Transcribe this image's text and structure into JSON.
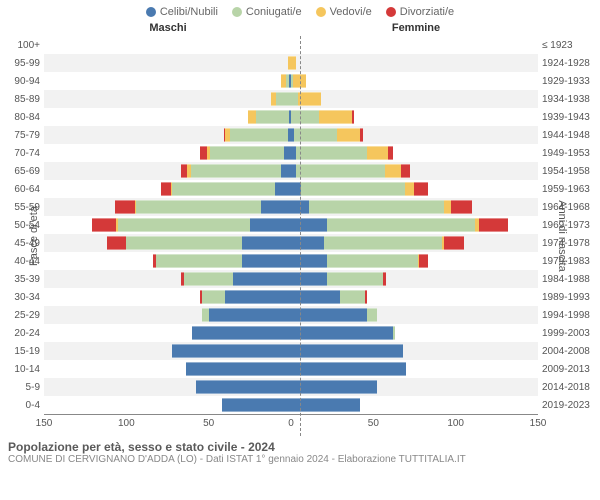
{
  "legend": [
    {
      "label": "Celibi/Nubili",
      "color": "#4a7ab0"
    },
    {
      "label": "Coniugati/e",
      "color": "#b8d4a8"
    },
    {
      "label": "Vedovi/e",
      "color": "#f5c65d"
    },
    {
      "label": "Divorziati/e",
      "color": "#d43939"
    }
  ],
  "headers": {
    "male": "Maschi",
    "female": "Femmine"
  },
  "y_left_title": "Fasce di età",
  "y_right_title": "Anni di nascita",
  "x_max": 150,
  "x_ticks": [
    150,
    100,
    50,
    0,
    50,
    100,
    150
  ],
  "colors": {
    "celibi": "#4a7ab0",
    "coniugati": "#b8d4a8",
    "vedovi": "#f5c65d",
    "divorziati": "#d43939",
    "alt_row": "#f2f2f2",
    "grid": "#888"
  },
  "rows": [
    {
      "age": "100+",
      "birth": "≤ 1923",
      "m": [
        0,
        0,
        0,
        0
      ],
      "f": [
        0,
        0,
        0,
        0
      ]
    },
    {
      "age": "95-99",
      "birth": "1924-1928",
      "m": [
        0,
        0,
        2,
        0
      ],
      "f": [
        0,
        0,
        3,
        0
      ]
    },
    {
      "age": "90-94",
      "birth": "1929-1933",
      "m": [
        1,
        2,
        3,
        0
      ],
      "f": [
        0,
        1,
        8,
        0
      ]
    },
    {
      "age": "85-89",
      "birth": "1934-1938",
      "m": [
        0,
        9,
        3,
        0
      ],
      "f": [
        0,
        4,
        14,
        0
      ]
    },
    {
      "age": "80-84",
      "birth": "1939-1943",
      "m": [
        1,
        20,
        5,
        0
      ],
      "f": [
        0,
        17,
        20,
        1
      ]
    },
    {
      "age": "75-79",
      "birth": "1944-1948",
      "m": [
        2,
        35,
        3,
        1
      ],
      "f": [
        2,
        26,
        14,
        2
      ]
    },
    {
      "age": "70-74",
      "birth": "1949-1953",
      "m": [
        4,
        45,
        2,
        4
      ],
      "f": [
        3,
        43,
        13,
        3
      ]
    },
    {
      "age": "65-69",
      "birth": "1954-1958",
      "m": [
        6,
        55,
        2,
        4
      ],
      "f": [
        3,
        54,
        10,
        5
      ]
    },
    {
      "age": "60-64",
      "birth": "1959-1963",
      "m": [
        10,
        62,
        1,
        6
      ],
      "f": [
        6,
        63,
        6,
        8
      ]
    },
    {
      "age": "55-59",
      "birth": "1964-1968",
      "m": [
        18,
        76,
        1,
        12
      ],
      "f": [
        11,
        82,
        4,
        13
      ]
    },
    {
      "age": "50-54",
      "birth": "1969-1973",
      "m": [
        25,
        80,
        1,
        15
      ],
      "f": [
        22,
        90,
        2,
        18
      ]
    },
    {
      "age": "45-49",
      "birth": "1974-1978",
      "m": [
        30,
        70,
        0,
        12
      ],
      "f": [
        20,
        72,
        1,
        12
      ]
    },
    {
      "age": "40-44",
      "birth": "1979-1983",
      "m": [
        30,
        52,
        0,
        2
      ],
      "f": [
        22,
        55,
        1,
        5
      ]
    },
    {
      "age": "35-39",
      "birth": "1984-1988",
      "m": [
        35,
        30,
        0,
        2
      ],
      "f": [
        22,
        34,
        0,
        2
      ]
    },
    {
      "age": "30-34",
      "birth": "1989-1993",
      "m": [
        40,
        14,
        0,
        1
      ],
      "f": [
        30,
        15,
        0,
        1
      ]
    },
    {
      "age": "25-29",
      "birth": "1994-1998",
      "m": [
        50,
        4,
        0,
        0
      ],
      "f": [
        46,
        6,
        0,
        0
      ]
    },
    {
      "age": "20-24",
      "birth": "1999-2003",
      "m": [
        60,
        0,
        0,
        0
      ],
      "f": [
        62,
        1,
        0,
        0
      ]
    },
    {
      "age": "15-19",
      "birth": "2004-2008",
      "m": [
        72,
        0,
        0,
        0
      ],
      "f": [
        68,
        0,
        0,
        0
      ]
    },
    {
      "age": "10-14",
      "birth": "2009-2013",
      "m": [
        64,
        0,
        0,
        0
      ],
      "f": [
        70,
        0,
        0,
        0
      ]
    },
    {
      "age": "5-9",
      "birth": "2014-2018",
      "m": [
        58,
        0,
        0,
        0
      ],
      "f": [
        52,
        0,
        0,
        0
      ]
    },
    {
      "age": "0-4",
      "birth": "2019-2023",
      "m": [
        42,
        0,
        0,
        0
      ],
      "f": [
        42,
        0,
        0,
        0
      ]
    }
  ],
  "footer": {
    "title": "Popolazione per età, sesso e stato civile - 2024",
    "sub": "COMUNE DI CERVIGNANO D'ADDA (LO) - Dati ISTAT 1° gennaio 2024 - Elaborazione TUTTITALIA.IT"
  }
}
